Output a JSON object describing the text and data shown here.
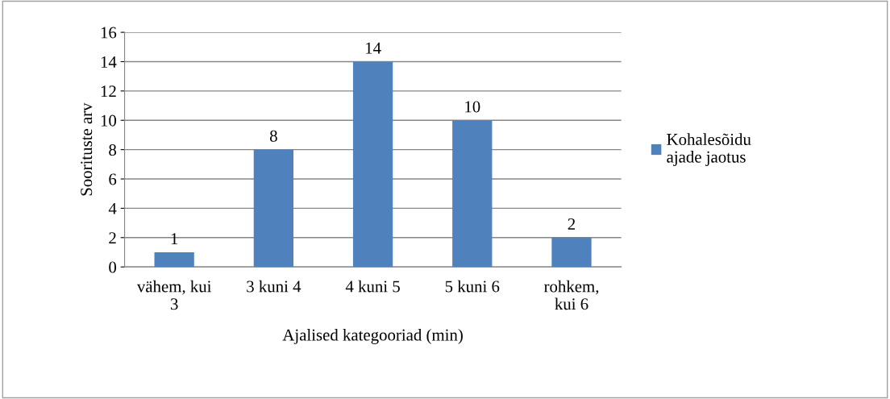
{
  "chart_data": {
    "type": "bar",
    "categories": [
      "vähem, kui\n3",
      "3 kuni 4",
      "4 kuni 5",
      "5 kuni 6",
      "rohkem,\nkui 6"
    ],
    "series": [
      {
        "name": "Kohalesõidu\najade jaotus",
        "color": "#4f81bd",
        "values": [
          1,
          8,
          14,
          10,
          2
        ]
      }
    ],
    "xlabel": "Ajalised kategooriad (min)",
    "ylabel": "Soorituste arv",
    "ylim": [
      0,
      16
    ],
    "yticks": [
      0,
      2,
      4,
      6,
      8,
      10,
      12,
      14,
      16
    ],
    "grid": "y",
    "legend": "right",
    "data_labels": true
  }
}
